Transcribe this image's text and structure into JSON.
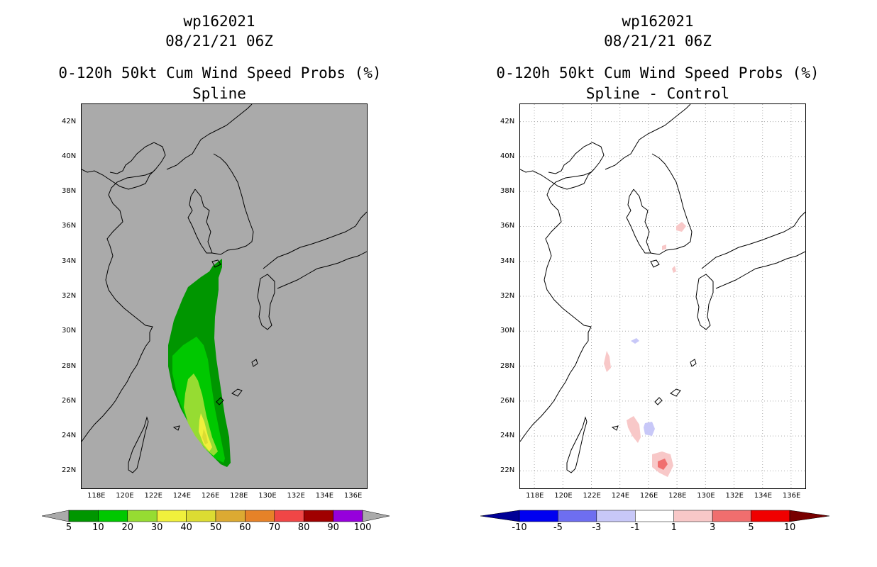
{
  "left_panel": {
    "storm_id": "wp162021",
    "datetime": "08/21/21 06Z",
    "product": "0-120h 50kt Cum Wind Speed Probs (%)",
    "subtitle": "Spline",
    "background_color": "#aaaaaa",
    "colorbar": {
      "colors": [
        "#009600",
        "#00c800",
        "#96dc32",
        "#f0f03c",
        "#dcdc32",
        "#dcaa32",
        "#e68228",
        "#f04646",
        "#a00000",
        "#9600dc"
      ],
      "labels": [
        "5",
        "10",
        "20",
        "30",
        "40",
        "50",
        "60",
        "70",
        "80",
        "90",
        "100"
      ],
      "end_colors": [
        "#aaaaaa",
        "#aaaaaa"
      ]
    }
  },
  "right_panel": {
    "storm_id": "wp162021",
    "datetime": "08/21/21 06Z",
    "product": "0-120h 50kt Cum Wind Speed Probs (%)",
    "subtitle": "Spline - Control",
    "background_color": "#ffffff",
    "colorbar": {
      "colors": [
        "#0000f0",
        "#6e6ef0",
        "#c8c8f8",
        "#ffffff",
        "#f8c8c8",
        "#f06e6e",
        "#f00000"
      ],
      "labels": [
        "-10",
        "-5",
        "-3",
        "-1",
        "1",
        "3",
        "5",
        "10"
      ],
      "end_colors": [
        "#000096",
        "#780000"
      ]
    }
  },
  "axes": {
    "lat_ticks": [
      "42N",
      "40N",
      "38N",
      "36N",
      "34N",
      "32N",
      "30N",
      "28N",
      "26N",
      "24N",
      "22N"
    ],
    "lon_ticks": [
      "118E",
      "120E",
      "122E",
      "124E",
      "126E",
      "128E",
      "130E",
      "132E",
      "134E",
      "136E"
    ],
    "lat_range": [
      21,
      43
    ],
    "lon_range": [
      117,
      137
    ]
  }
}
